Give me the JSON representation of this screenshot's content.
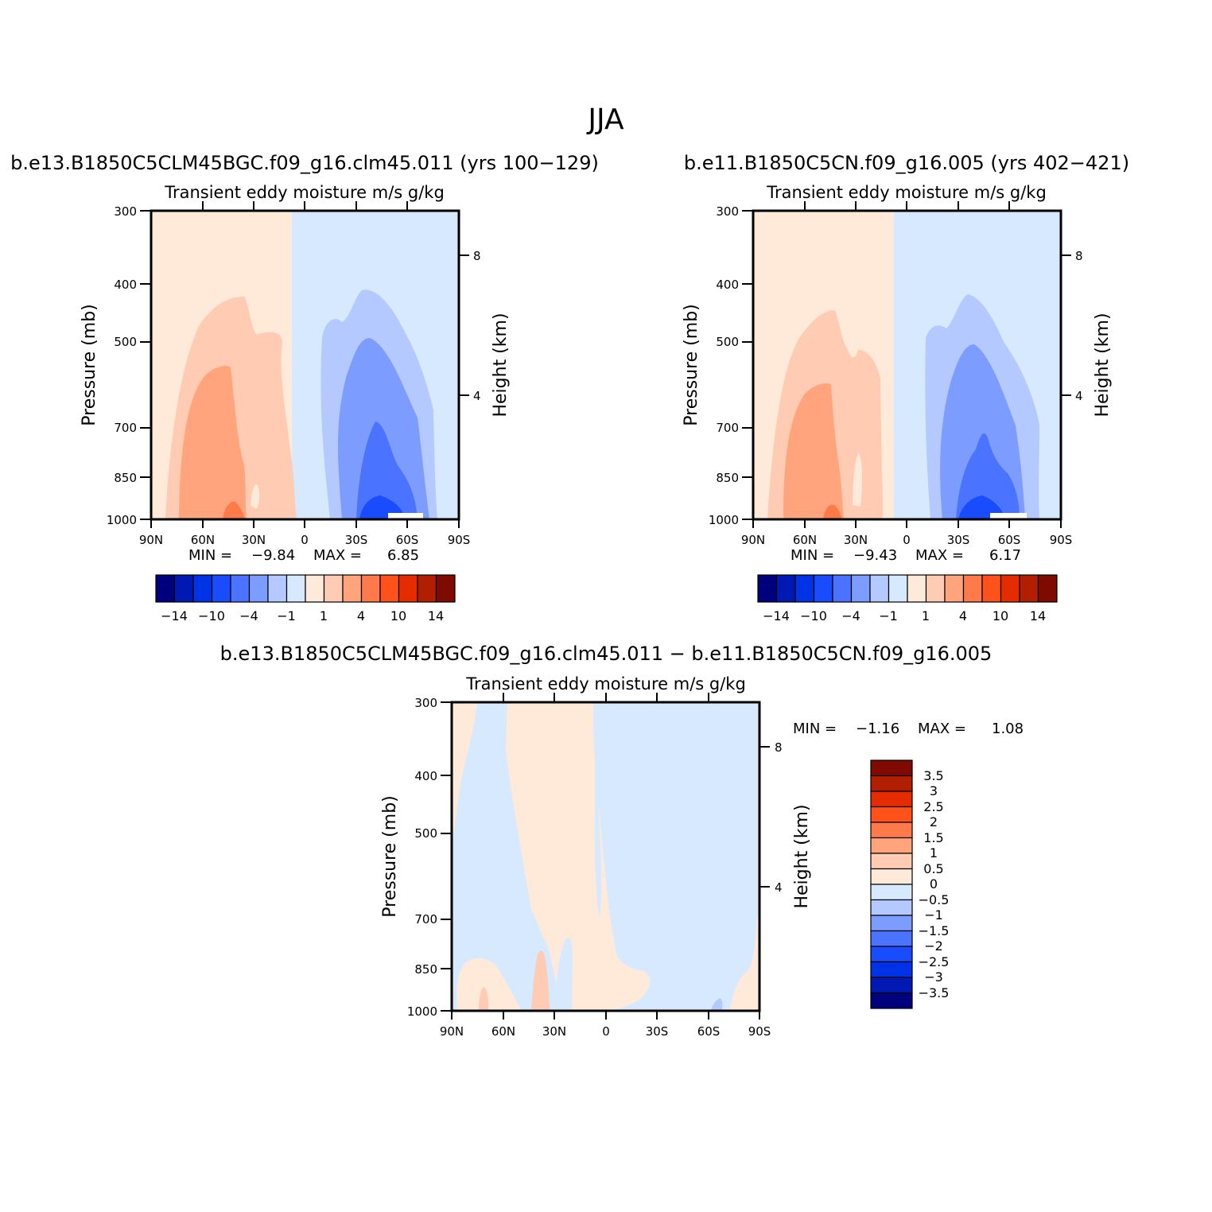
{
  "figure": {
    "title": "JJA",
    "variable_label": "Transient  eddy  moisture m/s  g/kg"
  },
  "colors": {
    "abs": [
      "#00007f",
      "#0019b2",
      "#0033e5",
      "#1a4cff",
      "#4a74ff",
      "#7c9cff",
      "#b3c9ff",
      "#d7e9ff",
      "#ffead9",
      "#ffcbb2",
      "#ffa47c",
      "#ff7a4a",
      "#ff511a",
      "#e52c00",
      "#b21f00",
      "#7f0a00"
    ],
    "diff": [
      "#00007f",
      "#0019b2",
      "#0033e5",
      "#1a4cff",
      "#4a74ff",
      "#7c9cff",
      "#b3c9ff",
      "#d7e9ff",
      "#ffead9",
      "#ffcbb2",
      "#ffa47c",
      "#ff7a4a",
      "#ff511a",
      "#e52c00",
      "#b21f00",
      "#7f0a00"
    ]
  },
  "chart_data": [
    {
      "type": "contour",
      "id": "case1",
      "title": "b.e13.B1850C5CLM45BGC.f09_g16.clm45.011  (yrs  100−129)",
      "subtitle": "Transient  eddy  moisture m/s  g/kg",
      "xlabel": "",
      "ylabel": "Pressure  (mb)",
      "ylabel_right": "Height  (km)",
      "x_ticks": [
        "90N",
        "60N",
        "30N",
        "0",
        "30S",
        "60S",
        "90S"
      ],
      "y_ticks": [
        "300",
        "400",
        "500",
        "700",
        "850",
        "1000"
      ],
      "y_ticks_right": [
        "8",
        "4"
      ],
      "ylim": [
        1000,
        300
      ],
      "min_label": "MIN  =",
      "min": "−9.84",
      "max_label": "MAX  =",
      "max": "6.85",
      "colorbar_labels": [
        "−14",
        "−10",
        "−4",
        "−1",
        "1",
        "4",
        "10",
        "14"
      ]
    },
    {
      "type": "contour",
      "id": "case2",
      "title": "b.e11.B1850C5CN.f09_g16.005  (yrs  402−421)",
      "subtitle": "Transient  eddy  moisture m/s  g/kg",
      "xlabel": "",
      "ylabel": "Pressure  (mb)",
      "ylabel_right": "Height  (km)",
      "x_ticks": [
        "90N",
        "60N",
        "30N",
        "0",
        "30S",
        "60S",
        "90S"
      ],
      "y_ticks": [
        "300",
        "400",
        "500",
        "700",
        "850",
        "1000"
      ],
      "y_ticks_right": [
        "8",
        "4"
      ],
      "ylim": [
        1000,
        300
      ],
      "min_label": "MIN  =",
      "min": "−9.43",
      "max_label": "MAX  =",
      "max": "6.17",
      "colorbar_labels": [
        "−14",
        "−10",
        "−4",
        "−1",
        "1",
        "4",
        "10",
        "14"
      ]
    },
    {
      "type": "contour",
      "id": "diff",
      "title": "b.e13.B1850C5CLM45BGC.f09_g16.clm45.011  −  b.e11.B1850C5CN.f09_g16.005",
      "subtitle": "Transient  eddy  moisture m/s  g/kg",
      "xlabel": "",
      "ylabel": "Pressure  (mb)",
      "ylabel_right": "Height  (km)",
      "x_ticks": [
        "90N",
        "60N",
        "30N",
        "0",
        "30S",
        "60S",
        "90S"
      ],
      "y_ticks": [
        "300",
        "400",
        "500",
        "700",
        "850",
        "1000"
      ],
      "y_ticks_right": [
        "8",
        "4"
      ],
      "ylim": [
        1000,
        300
      ],
      "min_label": "MIN  =",
      "min": "−1.16",
      "max_label": "MAX  =",
      "max": "1.08",
      "colorbar_labels": [
        "3.5",
        "3",
        "2.5",
        "2",
        "1.5",
        "1",
        "0.5",
        "0",
        "−0.5",
        "−1",
        "−1.5",
        "−2",
        "−2.5",
        "−3",
        "−3.5"
      ]
    }
  ]
}
